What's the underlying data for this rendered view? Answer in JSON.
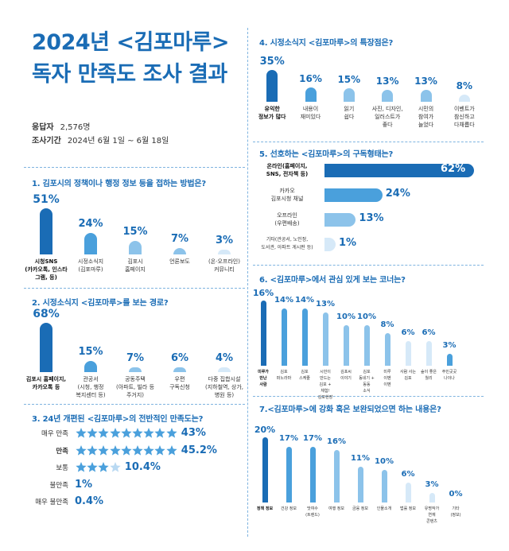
{
  "header": {
    "title_line1": "2024년 <김포마루>",
    "title_line2": "독자 만족도 조사 결과",
    "respondents_label": "응답자",
    "respondents_value": "2,576명",
    "period_label": "조사기간",
    "period_value": "2024년 6월 1일 ~ 6월 18일"
  },
  "colors": {
    "dark": "#1a6cb5",
    "mid": "#4aa0dc",
    "light": "#8cc3ea",
    "pale": "#d6e9f8",
    "star_off": "#b9d9f2"
  },
  "chart_data": [
    {
      "id": "q1",
      "type": "bar",
      "title": "1. 김포시의 정책이나 행정 정보 등을 접하는 방법은?",
      "categories": [
        [
          "시청SNS",
          "(카카오톡, 인스타",
          "그램, 등)"
        ],
        [
          "시정소식지",
          "(김포마루)"
        ],
        [
          "김포시",
          "홈페이지"
        ],
        [
          "언론보도"
        ],
        [
          "(온·오프라인)",
          "커뮤니티"
        ]
      ],
      "values": [
        51,
        24,
        15,
        7,
        3
      ],
      "labels": [
        "51%",
        "24%",
        "15%",
        "7%",
        "3%"
      ]
    },
    {
      "id": "q2",
      "type": "bar",
      "title": "2. 시정소식지 <김포마루>를 보는 경로?",
      "categories": [
        [
          "김포시 홈페이지,",
          "카카오톡 등"
        ],
        [
          "관공서",
          "(시청, 행정",
          "복지센터 등)"
        ],
        [
          "공동주택",
          "(아파트, 빌라 등",
          "주거지)"
        ],
        [
          "우편",
          "구독신청"
        ],
        [
          "다중 집합시설",
          "(지하철역, 상가,",
          "병원 등)"
        ]
      ],
      "values": [
        68,
        15,
        7,
        6,
        4
      ],
      "labels": [
        "68%",
        "15%",
        "7%",
        "6%",
        "4%"
      ]
    },
    {
      "id": "q3",
      "type": "rating",
      "title": "3. 24년 개편된 <김포마루>의 전반적인 만족도는?",
      "categories": [
        "매우 만족",
        "만족",
        "보통",
        "불만족",
        "매우 불만족"
      ],
      "values": [
        43,
        45.2,
        10.4,
        1,
        0.4
      ],
      "labels": [
        "43%",
        "45.2%",
        "10.4%",
        "1%",
        "0.4%"
      ],
      "stars_filled": [
        9,
        9,
        3,
        0,
        0
      ],
      "stars_total": [
        9,
        9,
        4,
        0,
        0
      ]
    },
    {
      "id": "q4",
      "type": "bar",
      "title": "4. 시정소식지 <김포마루>의 특장점은?",
      "categories": [
        [
          "유익한",
          "정보가 많다"
        ],
        [
          "내용이",
          "재미있다"
        ],
        [
          "읽기",
          "쉽다"
        ],
        [
          "사진, 디자인,",
          "일러스트가",
          "좋다"
        ],
        [
          "시민의",
          "참여가",
          "늘었다"
        ],
        [
          "이벤트가",
          "참신하고",
          "다채롭다"
        ]
      ],
      "values": [
        35,
        16,
        15,
        13,
        13,
        8
      ],
      "labels": [
        "35%",
        "16%",
        "15%",
        "13%",
        "13%",
        "8%"
      ]
    },
    {
      "id": "q5",
      "type": "bar-horizontal",
      "title": "5. 선호하는 <김포마루>의 구독형태는?",
      "categories": [
        [
          "온라인(홈페이지,",
          "SNS, 전자책 등)"
        ],
        [
          "카카오",
          "김포시청 채널"
        ],
        [
          "오프라인",
          "(우편배송)"
        ],
        [
          "기타(관공서, 노인정,",
          "도서관, 아파트 게시판 등)"
        ]
      ],
      "values": [
        62,
        24,
        13,
        1
      ],
      "labels": [
        "62%",
        "24%",
        "13%",
        "1%"
      ]
    },
    {
      "id": "q6",
      "type": "bar",
      "title": "6. <김포마루>에서 관심 있게 보는 코너는?",
      "categories": [
        [
          "미루가",
          "만난",
          "사람"
        ],
        [
          "김포",
          "퍼노라마"
        ],
        [
          "김포",
          "스케줄"
        ],
        [
          "시민이",
          "만드는",
          "김포 +",
          "체험!",
          "김포현장"
        ],
        [
          "김포씨",
          "이야기"
        ],
        [
          "김포",
          "동네기 +",
          "동동",
          "소식"
        ],
        [
          "미루",
          "이벤",
          "이벤"
        ],
        [
          "사람 사는",
          "김포"
        ],
        [
          "숲이 좋은",
          "월리"
        ],
        [
          "주민곳곳",
          "나이나"
        ]
      ],
      "values": [
        16,
        14,
        14,
        13,
        10,
        10,
        8,
        6,
        6,
        3
      ],
      "labels": [
        "16%",
        "14%",
        "14%",
        "13%",
        "10%",
        "10%",
        "8%",
        "6%",
        "6%",
        "3%"
      ]
    },
    {
      "id": "q7",
      "type": "bar",
      "title": "7.<김포마루>에 강화 혹은 보완되었으면 하는 내용은?",
      "categories": [
        [
          "정책 정보"
        ],
        [
          "건강 정보"
        ],
        [
          "맛여수",
          "(트렌드)"
        ],
        [
          "여행 정보"
        ],
        [
          "금융 정보"
        ],
        [
          "인물소개"
        ],
        [
          "법률 정보"
        ],
        [
          "유명작가",
          "연재",
          "콘텐츠"
        ],
        [
          "기타",
          "(정보)"
        ]
      ],
      "values": [
        20,
        17,
        17,
        16,
        11,
        10,
        6,
        3,
        0
      ],
      "labels": [
        "20%",
        "17%",
        "17%",
        "16%",
        "11%",
        "10%",
        "6%",
        "3%",
        "0%"
      ]
    }
  ]
}
